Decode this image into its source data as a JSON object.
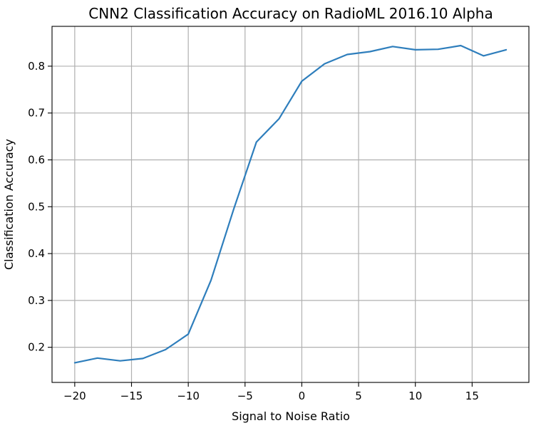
{
  "chart_data": {
    "type": "line",
    "title": "CNN2 Classification Accuracy on RadioML 2016.10 Alpha",
    "xlabel": "Signal to Noise Ratio",
    "ylabel": "Classification Accuracy",
    "x": [
      -20,
      -18,
      -16,
      -14,
      -12,
      -10,
      -8,
      -6,
      -4,
      -2,
      0,
      2,
      4,
      6,
      8,
      10,
      12,
      14,
      16,
      18
    ],
    "series": [
      {
        "values": [
          0.167,
          0.177,
          0.171,
          0.176,
          0.195,
          0.228,
          0.343,
          0.495,
          0.638,
          0.688,
          0.768,
          0.805,
          0.825,
          0.831,
          0.842,
          0.835,
          0.836,
          0.844,
          0.822,
          0.835
        ],
        "color": "#2e7ebc"
      }
    ],
    "xlim": [
      -22,
      20
    ],
    "ylim": [
      0.125,
      0.885
    ],
    "xticks": [
      -20,
      -15,
      -10,
      -5,
      0,
      5,
      10,
      15
    ],
    "xtick_labels": [
      "−20",
      "−15",
      "−10",
      "−5",
      "0",
      "5",
      "10",
      "15"
    ],
    "yticks": [
      0.2,
      0.3,
      0.4,
      0.5,
      0.6,
      0.7,
      0.8
    ],
    "ytick_labels": [
      "0.2",
      "0.3",
      "0.4",
      "0.5",
      "0.6",
      "0.7",
      "0.8"
    ],
    "grid": true
  }
}
